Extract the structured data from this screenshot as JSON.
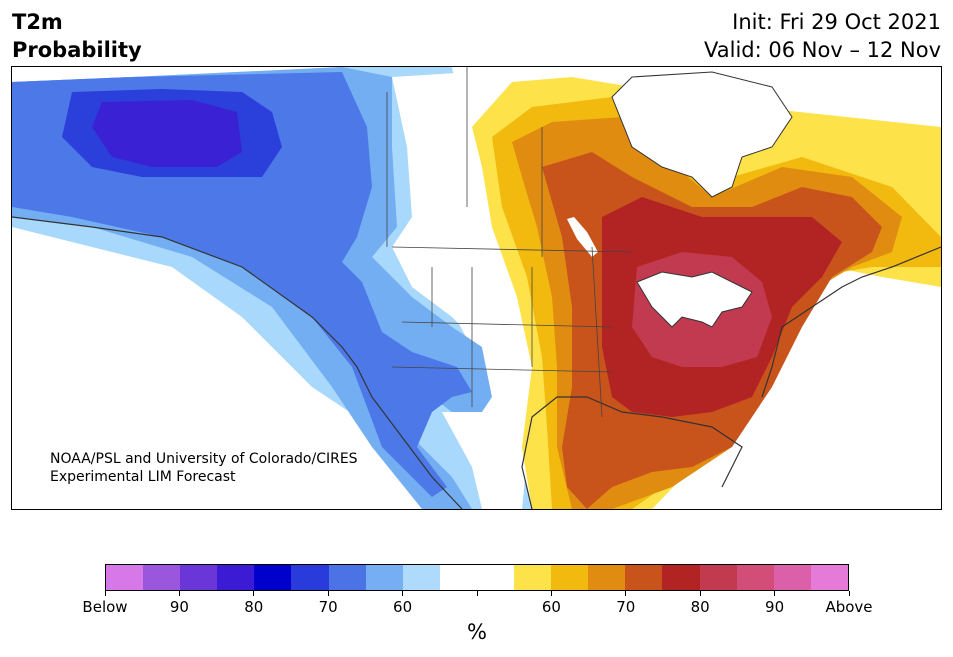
{
  "header": {
    "title_line1": "T2m",
    "title_line2": "Probability",
    "init": "Init: Fri 29 Oct 2021",
    "valid": "Valid: 06 Nov – 12 Nov"
  },
  "map": {
    "credit_line1": "NOAA/PSL and University of Colorado/CIRES",
    "credit_line2": "Experimental LIM Forecast",
    "colors": {
      "below_90": "#9b59d9",
      "below_80": "#3a22d4",
      "below_70": "#2b3fdb",
      "below_60": "#4d79e8",
      "below_50": "#74aef2",
      "below_low": "#a8d8fb",
      "neutral": "#ffffff",
      "above_low": "#fde24a",
      "above_50": "#f2b90f",
      "above_60": "#e08c11",
      "above_70": "#c8541b",
      "above_80": "#b22424",
      "above_90": "#c13a50",
      "coast": "#333333"
    }
  },
  "colorbar": {
    "segments": [
      "#d678e8",
      "#9b56de",
      "#6a36d8",
      "#3b1bd4",
      "#0000cc",
      "#2a3bdb",
      "#4c73e6",
      "#75aef2",
      "#aedbfb",
      "#ffffff",
      "#ffffff",
      "#fde24a",
      "#f2b90f",
      "#e08c11",
      "#c8541b",
      "#b22424",
      "#c13a50",
      "#d24d78",
      "#db5fa9",
      "#e57ad8"
    ],
    "labels": [
      "Below",
      "90",
      "80",
      "70",
      "60",
      "60",
      "70",
      "80",
      "90",
      "Above"
    ],
    "unit": "%"
  }
}
